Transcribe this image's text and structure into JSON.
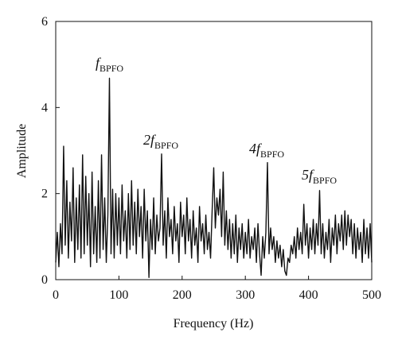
{
  "chart_data": {
    "type": "line",
    "x_label": "Frequency (Hz)",
    "y_label": "Amplitude",
    "xlim": [
      0,
      500
    ],
    "ylim": [
      0,
      6
    ],
    "xticks": [
      0,
      100,
      200,
      300,
      400,
      500
    ],
    "yticks": [
      0,
      2,
      4,
      6
    ],
    "color": "#111111",
    "x": [
      0,
      2.5,
      5,
      7.5,
      10,
      12.5,
      15,
      17.5,
      20,
      22.5,
      25,
      27.5,
      30,
      32.5,
      35,
      37.5,
      40,
      42.5,
      45,
      47.5,
      50,
      52.5,
      55,
      57.5,
      60,
      62.5,
      65,
      67.5,
      70,
      72.5,
      75,
      77.5,
      80,
      82.5,
      85,
      87.5,
      90,
      92.5,
      95,
      97.5,
      100,
      102.5,
      105,
      107.5,
      110,
      112.5,
      115,
      117.5,
      120,
      122.5,
      125,
      127.5,
      130,
      132.5,
      135,
      137.5,
      140,
      142.5,
      145,
      147.5,
      150,
      152.5,
      155,
      157.5,
      160,
      162.5,
      165,
      167.5,
      170,
      172.5,
      175,
      177.5,
      180,
      182.5,
      185,
      187.5,
      190,
      192.5,
      195,
      197.5,
      200,
      202.5,
      205,
      207.5,
      210,
      212.5,
      215,
      217.5,
      220,
      222.5,
      225,
      227.5,
      230,
      232.5,
      235,
      237.5,
      240,
      242.5,
      245,
      247.5,
      250,
      252.5,
      255,
      257.5,
      260,
      262.5,
      265,
      267.5,
      270,
      272.5,
      275,
      277.5,
      280,
      282.5,
      285,
      287.5,
      290,
      292.5,
      295,
      297.5,
      300,
      302.5,
      305,
      307.5,
      310,
      312.5,
      315,
      317.5,
      320,
      322.5,
      325,
      327.5,
      330,
      332.5,
      335,
      337.5,
      340,
      342.5,
      345,
      347.5,
      350,
      352.5,
      355,
      357.5,
      360,
      362.5,
      365,
      367.5,
      370,
      372.5,
      375,
      377.5,
      380,
      382.5,
      385,
      387.5,
      390,
      392.5,
      395,
      397.5,
      400,
      402.5,
      405,
      407.5,
      410,
      412.5,
      415,
      417.5,
      420,
      422.5,
      425,
      427.5,
      430,
      432.5,
      435,
      437.5,
      440,
      442.5,
      445,
      447.5,
      450,
      452.5,
      455,
      457.5,
      460,
      462.5,
      465,
      467.5,
      470,
      472.5,
      475,
      477.5,
      480,
      482.5,
      485,
      487.5,
      490,
      492.5,
      495,
      497.5,
      500
    ],
    "values": [
      0.4,
      1.1,
      0.3,
      1.3,
      0.6,
      3.1,
      0.8,
      2.3,
      0.5,
      1.8,
      0.9,
      2.6,
      0.4,
      1.9,
      0.7,
      2.2,
      0.5,
      2.9,
      0.6,
      2.4,
      0.8,
      2.0,
      0.3,
      2.5,
      0.6,
      1.7,
      0.4,
      2.3,
      0.5,
      2.9,
      0.7,
      1.9,
      0.4,
      1.5,
      4.68,
      0.6,
      2.1,
      0.5,
      2.0,
      0.8,
      1.9,
      0.6,
      2.2,
      0.9,
      1.6,
      0.5,
      2.0,
      0.7,
      2.3,
      0.8,
      1.8,
      0.6,
      2.1,
      1.0,
      1.7,
      0.5,
      2.1,
      0.9,
      1.6,
      0.05,
      1.4,
      0.7,
      1.9,
      0.6,
      1.5,
      0.9,
      1.2,
      2.92,
      0.8,
      1.6,
      0.5,
      1.9,
      1.0,
      1.4,
      0.6,
      1.7,
      0.9,
      1.3,
      0.4,
      1.8,
      1.0,
      1.5,
      0.6,
      1.9,
      0.9,
      1.4,
      0.5,
      1.6,
      0.8,
      1.2,
      0.4,
      1.7,
      0.9,
      1.3,
      0.6,
      1.5,
      0.7,
      1.1,
      0.5,
      1.6,
      2.6,
      1.2,
      1.9,
      1.5,
      2.1,
      1.0,
      2.5,
      0.8,
      1.6,
      0.7,
      1.4,
      0.5,
      1.3,
      0.6,
      1.5,
      0.4,
      1.2,
      0.7,
      1.3,
      0.5,
      1.1,
      0.6,
      1.4,
      0.5,
      1.0,
      0.7,
      1.2,
      0.4,
      1.3,
      0.6,
      0.1,
      1.0,
      0.5,
      1.1,
      2.72,
      0.6,
      1.2,
      0.7,
      1.0,
      0.4,
      0.9,
      0.5,
      0.8,
      0.3,
      0.7,
      0.2,
      0.1,
      0.5,
      0.4,
      0.8,
      0.6,
      1.0,
      0.5,
      1.2,
      0.7,
      1.1,
      0.6,
      1.75,
      0.8,
      1.3,
      0.5,
      1.2,
      0.7,
      1.4,
      0.6,
      1.3,
      0.8,
      2.07,
      0.6,
      1.3,
      0.5,
      1.1,
      0.7,
      1.4,
      0.4,
      1.2,
      0.8,
      1.5,
      0.6,
      1.3,
      0.9,
      1.5,
      0.7,
      1.6,
      0.8,
      1.5,
      1.0,
      1.4,
      0.6,
      1.3,
      0.5,
      1.2,
      0.7,
      1.1,
      0.4,
      1.4,
      0.6,
      1.2,
      0.5,
      1.3,
      0.4
    ],
    "annotations": [
      {
        "text": "f",
        "subscript": "BPFO"
      },
      {
        "text": "2f",
        "subscript": "BPFO"
      },
      {
        "text": "4f",
        "subscript": "BPFO"
      },
      {
        "text": "5f",
        "subscript": "BPFO"
      }
    ]
  }
}
